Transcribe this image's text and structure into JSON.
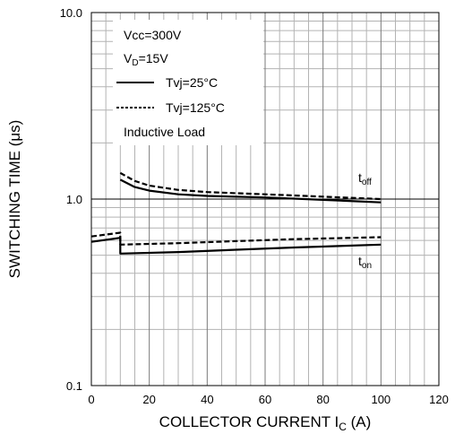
{
  "chart_data": {
    "type": "line",
    "x_scale": "linear",
    "y_scale": "log",
    "xlim": [
      0,
      120
    ],
    "ylim": [
      0.1,
      10
    ],
    "grid": true,
    "xlabel_parts": {
      "main": "COLLECTOR CURRENT I",
      "sub": "C",
      "unit": " (A)"
    },
    "ylabel": "SWITCHING TIME (μs)",
    "x_ticks": [
      {
        "value": 0,
        "label": "0"
      },
      {
        "value": 20,
        "label": "20"
      },
      {
        "value": 40,
        "label": "40"
      },
      {
        "value": 60,
        "label": "60"
      },
      {
        "value": 80,
        "label": "80"
      },
      {
        "value": 100,
        "label": "100"
      },
      {
        "value": 120,
        "label": "120"
      }
    ],
    "y_ticks": [
      {
        "value": 0.1,
        "label": "0.1"
      },
      {
        "value": 1,
        "label": "1.0"
      },
      {
        "value": 10,
        "label": "10.0"
      }
    ],
    "legend": {
      "placement": "top-left",
      "conditions": [
        {
          "text": "Vcc=300V"
        },
        {
          "main": "V",
          "sub": "D",
          "rest": "=15V"
        }
      ],
      "entries": [
        {
          "label": "Tvj=25°C",
          "style": "solid"
        },
        {
          "label": "Tvj=125°C",
          "style": "dashed"
        }
      ],
      "note": "Inductive Load"
    },
    "curve_labels": [
      {
        "main": "t",
        "sub": "off"
      },
      {
        "main": "t",
        "sub": "on"
      }
    ],
    "series": [
      {
        "name": "t_off Tvj=25°C",
        "style": "solid",
        "points": [
          [
            10,
            1.27
          ],
          [
            15,
            1.16
          ],
          [
            20,
            1.11
          ],
          [
            30,
            1.06
          ],
          [
            40,
            1.04
          ],
          [
            60,
            1.02
          ],
          [
            80,
            0.99
          ],
          [
            100,
            0.96
          ]
        ]
      },
      {
        "name": "t_off Tvj=125°C",
        "style": "dashed",
        "points": [
          [
            10,
            1.38
          ],
          [
            15,
            1.25
          ],
          [
            20,
            1.18
          ],
          [
            30,
            1.12
          ],
          [
            40,
            1.09
          ],
          [
            60,
            1.06
          ],
          [
            80,
            1.03
          ],
          [
            100,
            1.0
          ]
        ]
      },
      {
        "name": "t_on Tvj=25°C",
        "style": "solid",
        "points": [
          [
            0,
            0.59
          ],
          [
            10,
            0.62
          ],
          [
            10,
            0.51
          ],
          [
            30,
            0.52
          ],
          [
            50,
            0.535
          ],
          [
            70,
            0.55
          ],
          [
            100,
            0.57
          ]
        ]
      },
      {
        "name": "t_on Tvj=125°C",
        "style": "dashed",
        "points": [
          [
            0,
            0.63
          ],
          [
            10,
            0.66
          ],
          [
            10,
            0.57
          ],
          [
            30,
            0.58
          ],
          [
            50,
            0.595
          ],
          [
            70,
            0.61
          ],
          [
            100,
            0.625
          ]
        ]
      }
    ]
  }
}
